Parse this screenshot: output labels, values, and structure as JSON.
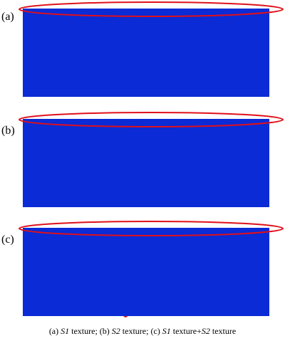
{
  "panels": [
    {
      "label": "(a)",
      "noise": "low"
    },
    {
      "label": "(b)",
      "noise": "medium"
    },
    {
      "label": "(c)",
      "noise": "high"
    }
  ],
  "caption": {
    "p1": "(a) ",
    "s1a": "S1",
    "p2": " texture; (b) ",
    "s2a": "S2",
    "p3": " texture; (c) ",
    "s1b": "S1",
    "p4": " texture+",
    "s2b": "S2",
    "p5": " texture"
  },
  "colors": {
    "scale": [
      "#0a2bd6",
      "#1f72f0",
      "#11b8f0",
      "#17e0c8",
      "#3ee87a",
      "#43d93d",
      "#7fe02c",
      "#b8e626",
      "#f0e423",
      "#f3a21d",
      "#f05a13",
      "#e01a0e"
    ],
    "ellipse": "#e0101a"
  }
}
